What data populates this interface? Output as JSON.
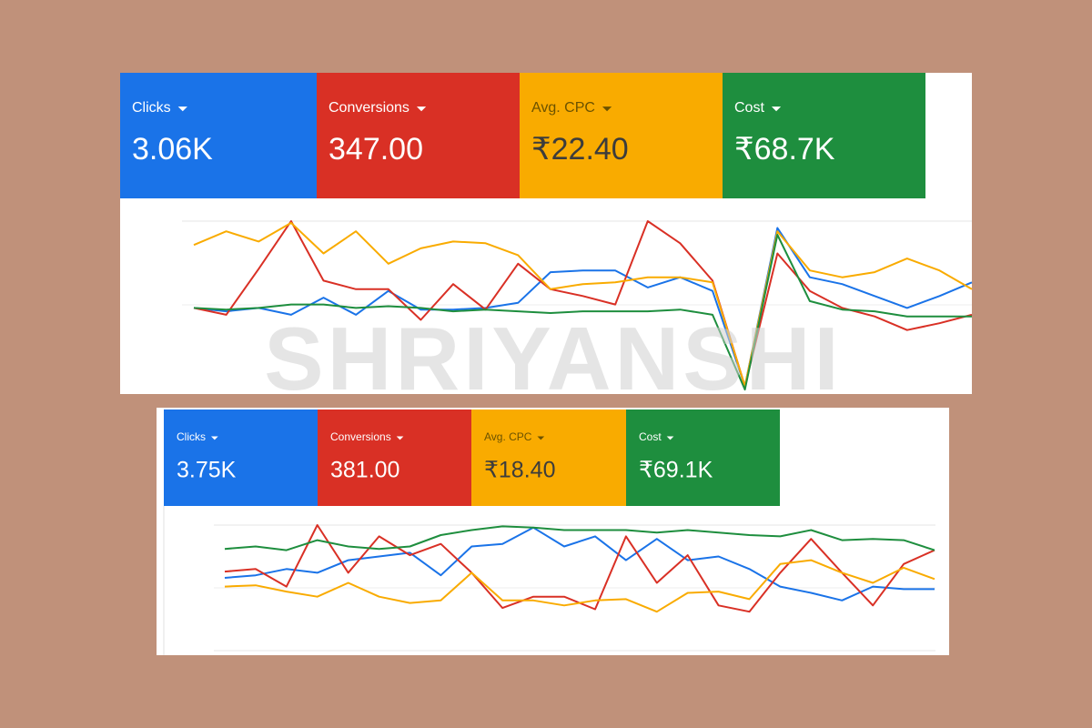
{
  "watermark": "SHRIYANSHI",
  "chart_data": [
    {
      "type": "line",
      "ylim": [
        0,
        100
      ],
      "series": [
        {
          "name": "Clicks",
          "total": "3.06K",
          "color": "#1a73e8",
          "values": [
            49,
            47,
            49,
            45,
            55,
            45,
            59,
            48,
            48,
            49,
            52,
            70,
            71,
            71,
            61,
            67,
            59,
            3,
            96,
            67,
            63,
            56,
            49,
            56,
            64
          ]
        },
        {
          "name": "Conversions",
          "total": "347.00",
          "color": "#d93025",
          "values": [
            49,
            45,
            72,
            100,
            65,
            60,
            60,
            42,
            63,
            48,
            75,
            60,
            56,
            51,
            100,
            87,
            65,
            3,
            81,
            59,
            49,
            44,
            36,
            40,
            45
          ]
        },
        {
          "name": "Avg. CPC",
          "total": "₹22.40",
          "color": "#f9ab00",
          "values": [
            86,
            94,
            88,
            99,
            81,
            94,
            75,
            84,
            88,
            87,
            80,
            60,
            63,
            64,
            67,
            67,
            64,
            3,
            94,
            71,
            67,
            70,
            78,
            71,
            60
          ]
        },
        {
          "name": "Cost",
          "total": "₹68.7K",
          "color": "#1e8e3e",
          "values": [
            49,
            48,
            49,
            51,
            51,
            49,
            50,
            49,
            47,
            48,
            47,
            46,
            47,
            47,
            47,
            48,
            45,
            1,
            92,
            53,
            48,
            47,
            44,
            44,
            44
          ]
        }
      ]
    },
    {
      "type": "line",
      "ylim": [
        0,
        100
      ],
      "series": [
        {
          "name": "Clicks",
          "total": "3.75K",
          "color": "#1a73e8",
          "values": [
            58,
            60,
            65,
            62,
            72,
            75,
            78,
            60,
            83,
            85,
            98,
            83,
            91,
            72,
            89,
            72,
            75,
            65,
            51,
            46,
            40,
            51,
            49,
            49
          ]
        },
        {
          "name": "Conversions",
          "total": "381.00",
          "color": "#d93025",
          "values": [
            63,
            65,
            51,
            100,
            62,
            91,
            76,
            85,
            62,
            34,
            43,
            43,
            33,
            91,
            54,
            76,
            36,
            31,
            62,
            89,
            62,
            36,
            69,
            80
          ]
        },
        {
          "name": "Avg. CPC",
          "total": "₹18.40",
          "color": "#f9ab00",
          "values": [
            51,
            52,
            47,
            43,
            54,
            43,
            38,
            40,
            62,
            40,
            40,
            36,
            40,
            41,
            31,
            46,
            47,
            41,
            69,
            72,
            62,
            54,
            66,
            57
          ]
        },
        {
          "name": "Cost",
          "total": "₹69.1K",
          "color": "#1e8e3e",
          "values": [
            81,
            83,
            80,
            88,
            83,
            81,
            83,
            92,
            96,
            99,
            98,
            96,
            96,
            96,
            94,
            96,
            94,
            92,
            91,
            96,
            88,
            89,
            88,
            80
          ]
        }
      ]
    }
  ]
}
